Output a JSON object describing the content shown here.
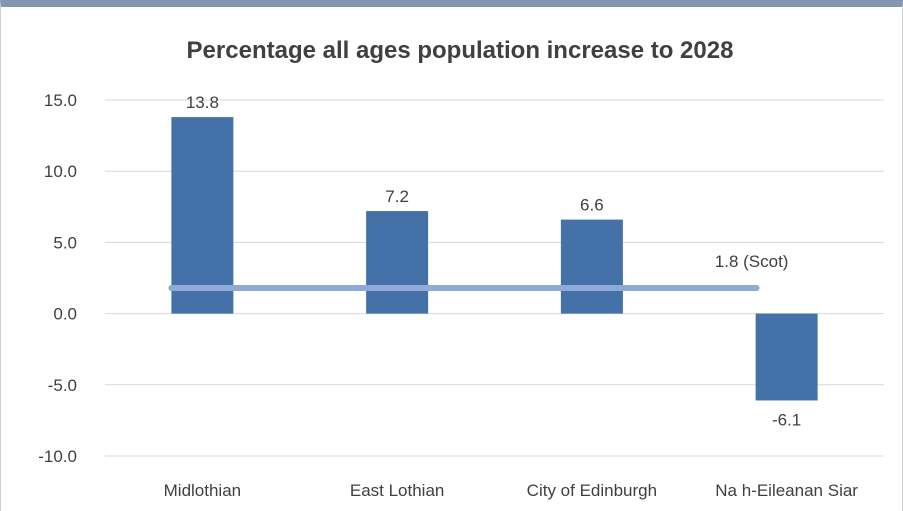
{
  "chart_data": {
    "type": "bar",
    "title": "Percentage all ages population increase to 2028",
    "categories": [
      "Midlothian",
      "East Lothian",
      "City of Edinburgh",
      "Na h-Eileanan Siar"
    ],
    "values": [
      13.8,
      7.2,
      6.6,
      -6.1
    ],
    "value_labels": [
      "13.8",
      "7.2",
      "6.6",
      "-6.1"
    ],
    "reference_line": {
      "value": 1.8,
      "label": "1.8 (Scot)"
    },
    "ylim": [
      -10,
      15
    ],
    "yticks": [
      15,
      10,
      5,
      0,
      -5,
      -10
    ],
    "ytick_labels": [
      "15.0",
      "10.0",
      "5.0",
      "0.0",
      "-5.0",
      "-10.0"
    ],
    "xlabel": "",
    "ylabel": "",
    "grid": true,
    "colors": {
      "bar": "#4472a8",
      "reference_line": "#8faad8",
      "grid": "#d9d9d9",
      "text": "#404040"
    }
  }
}
